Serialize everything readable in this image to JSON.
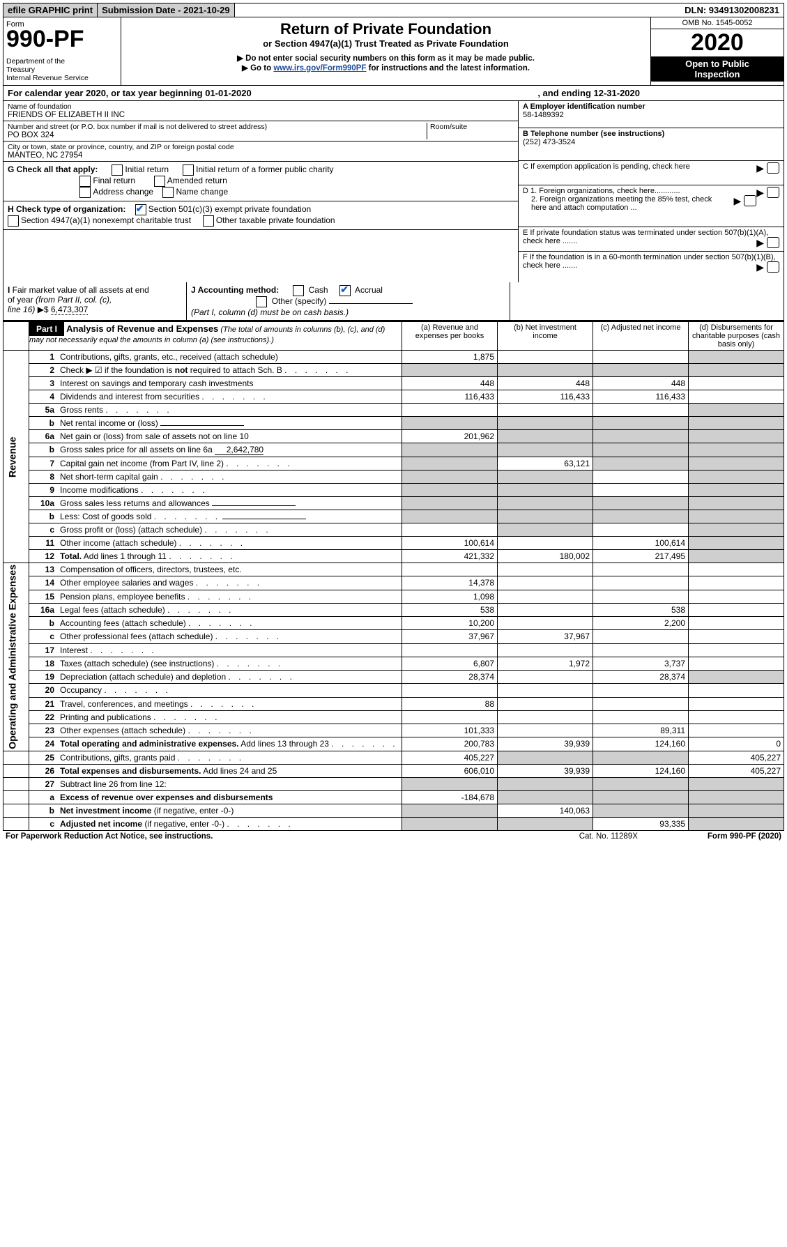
{
  "top": {
    "efile": "efile GRAPHIC print",
    "submission": "Submission Date - 2021-10-29",
    "dln": "DLN: 93491302008231"
  },
  "header": {
    "form": "Form",
    "number": "990-PF",
    "dept": "Department of the Treasury\nInternal Revenue Service",
    "title": "Return of Private Foundation",
    "subtitle": "or Section 4947(a)(1) Trust Treated as Private Foundation",
    "note1": "▶ Do not enter social security numbers on this form as it may be made public.",
    "note2_pre": "▶ Go to ",
    "note2_link": "www.irs.gov/Form990PF",
    "note2_post": " for instructions and the latest information.",
    "omb": "OMB No. 1545-0052",
    "year": "2020",
    "open": "Open to Public Inspection"
  },
  "cal": {
    "begin": "For calendar year 2020, or tax year beginning 01-01-2020",
    "end": ", and ending 12-31-2020"
  },
  "ident": {
    "name_label": "Name of foundation",
    "name": "FRIENDS OF ELIZABETH II INC",
    "addr_label": "Number and street (or P.O. box number if mail is not delivered to street address)",
    "addr": "PO BOX 324",
    "room_label": "Room/suite",
    "city_label": "City or town, state or province, country, and ZIP or foreign postal code",
    "city": "MANTEO, NC  27954",
    "ein_label": "A Employer identification number",
    "ein": "58-1489392",
    "tel_label": "B Telephone number (see instructions)",
    "tel": "(252) 473-3524",
    "c": "C If exemption application is pending, check here",
    "d1": "D 1. Foreign organizations, check here............",
    "d2": "2. Foreign organizations meeting the 85% test, check here and attach computation ...",
    "e": "E  If private foundation status was terminated under section 507(b)(1)(A), check here .......",
    "f": "F  If the foundation is in a 60-month termination under section 507(b)(1)(B), check here ......."
  },
  "g": {
    "label": "G Check all that apply:",
    "opts": [
      "Initial return",
      "Final return",
      "Address change",
      "Initial return of a former public charity",
      "Amended return",
      "Name change"
    ]
  },
  "h": {
    "label": "H Check type of organization:",
    "o1": "Section 501(c)(3) exempt private foundation",
    "o2": "Section 4947(a)(1) nonexempt charitable trust",
    "o3": "Other taxable private foundation"
  },
  "i": {
    "label": "I Fair market value of all assets at end of year (from Part II, col. (c), line 16)",
    "val": "6,473,307"
  },
  "j": {
    "label": "J Accounting method:",
    "cash": "Cash",
    "accrual": "Accrual",
    "other": "Other (specify)",
    "note": "(Part I, column (d) must be on cash basis.)"
  },
  "part1": {
    "label": "Part I",
    "title": "Analysis of Revenue and Expenses",
    "sub": "(The total of amounts in columns (b), (c), and (d) may not necessarily equal the amounts in column (a) (see instructions).)",
    "cols": {
      "a": "(a)    Revenue and expenses per books",
      "b": "(b)  Net investment income",
      "c": "(c)  Adjusted net income",
      "d": "(d)  Disbursements for charitable purposes (cash basis only)"
    }
  },
  "side": {
    "rev": "Revenue",
    "exp": "Operating and Administrative Expenses"
  },
  "rows": [
    {
      "n": "1",
      "d": "Contributions, gifts, grants, etc., received (attach schedule)",
      "a": "1,875",
      "d_s": true
    },
    {
      "n": "2",
      "d": "Check ▶ ☑ if the foundation is <b>not</b> required to attach Sch. B",
      "dots": true,
      "a_s": true,
      "b_s": true,
      "c_s": true,
      "d_s": true
    },
    {
      "n": "3",
      "d": "Interest on savings and temporary cash investments",
      "a": "448",
      "b": "448",
      "c": "448"
    },
    {
      "n": "4",
      "d": "Dividends and interest from securities",
      "dots": true,
      "a": "116,433",
      "b": "116,433",
      "c": "116,433"
    },
    {
      "n": "5a",
      "d": "Gross rents",
      "dots": true,
      "d_s": true
    },
    {
      "n": "b",
      "d": "Net rental income or (loss)",
      "uline": true,
      "a_s": true,
      "b_s": true,
      "c_s": true,
      "d_s": true
    },
    {
      "n": "6a",
      "d": "Net gain or (loss) from sale of assets not on line 10",
      "a": "201,962",
      "b_s": true,
      "c_s": true,
      "d_s": true
    },
    {
      "n": "b",
      "d": "Gross sales price for all assets on line 6a",
      "uline_val": "2,642,780",
      "a_s": true,
      "b_s": true,
      "c_s": true,
      "d_s": true
    },
    {
      "n": "7",
      "d": "Capital gain net income (from Part IV, line 2)",
      "dots": true,
      "a_s": true,
      "b": "63,121",
      "c_s": true,
      "d_s": true
    },
    {
      "n": "8",
      "d": "Net short-term capital gain",
      "dots": true,
      "a_s": true,
      "b_s": true,
      "d_s": true
    },
    {
      "n": "9",
      "d": "Income modifications",
      "dots": true,
      "a_s": true,
      "b_s": true,
      "d_s": true
    },
    {
      "n": "10a",
      "d": "Gross sales less returns and allowances",
      "uline": true,
      "a_s": true,
      "b_s": true,
      "c_s": true,
      "d_s": true
    },
    {
      "n": "b",
      "d": "Less: Cost of goods sold",
      "dots": true,
      "uline": true,
      "a_s": true,
      "b_s": true,
      "c_s": true,
      "d_s": true
    },
    {
      "n": "c",
      "d": "Gross profit or (loss) (attach schedule)",
      "dots": true,
      "b_s": true,
      "d_s": true
    },
    {
      "n": "11",
      "d": "Other income (attach schedule)",
      "dots": true,
      "a": "100,614",
      "c": "100,614",
      "d_s": true
    },
    {
      "n": "12",
      "d": "<b>Total.</b> Add lines 1 through 11",
      "dots": true,
      "a": "421,332",
      "b": "180,002",
      "c": "217,495",
      "d_s": true
    },
    {
      "n": "13",
      "d": "Compensation of officers, directors, trustees, etc."
    },
    {
      "n": "14",
      "d": "Other employee salaries and wages",
      "dots": true,
      "a": "14,378"
    },
    {
      "n": "15",
      "d": "Pension plans, employee benefits",
      "dots": true,
      "a": "1,098"
    },
    {
      "n": "16a",
      "d": "Legal fees (attach schedule)",
      "dots": true,
      "a": "538",
      "c": "538"
    },
    {
      "n": "b",
      "d": "Accounting fees (attach schedule)",
      "dots": true,
      "a": "10,200",
      "c": "2,200"
    },
    {
      "n": "c",
      "d": "Other professional fees (attach schedule)",
      "dots": true,
      "a": "37,967",
      "b": "37,967"
    },
    {
      "n": "17",
      "d": "Interest",
      "dots": true
    },
    {
      "n": "18",
      "d": "Taxes (attach schedule) (see instructions)",
      "dots": true,
      "a": "6,807",
      "b": "1,972",
      "c": "3,737"
    },
    {
      "n": "19",
      "d": "Depreciation (attach schedule) and depletion",
      "dots": true,
      "a": "28,374",
      "c": "28,374",
      "d_s": true
    },
    {
      "n": "20",
      "d": "Occupancy",
      "dots": true
    },
    {
      "n": "21",
      "d": "Travel, conferences, and meetings",
      "dots": true,
      "a": "88"
    },
    {
      "n": "22",
      "d": "Printing and publications",
      "dots": true
    },
    {
      "n": "23",
      "d": "Other expenses (attach schedule)",
      "dots": true,
      "a": "101,333",
      "c": "89,311"
    },
    {
      "n": "24",
      "d": "<b>Total operating and administrative expenses.</b> Add lines 13 through 23",
      "dots": true,
      "a": "200,783",
      "b": "39,939",
      "c": "124,160",
      "dv": "0"
    },
    {
      "n": "25",
      "d": "Contributions, gifts, grants paid",
      "dots": true,
      "a": "405,227",
      "b_s": true,
      "c_s": true,
      "dv": "405,227"
    },
    {
      "n": "26",
      "d": "<b>Total expenses and disbursements.</b> Add lines 24 and 25",
      "a": "606,010",
      "b": "39,939",
      "c": "124,160",
      "dv": "405,227"
    },
    {
      "n": "27",
      "d": "Subtract line 26 from line 12:",
      "a_s": true,
      "b_s": true,
      "c_s": true,
      "d_s": true
    },
    {
      "n": "a",
      "d": "<b>Excess of revenue over expenses and disbursements</b>",
      "a": "-184,678",
      "b_s": true,
      "c_s": true,
      "d_s": true
    },
    {
      "n": "b",
      "d": "<b>Net investment income</b> (if negative, enter -0-)",
      "a_s": true,
      "b": "140,063",
      "c_s": true,
      "d_s": true
    },
    {
      "n": "c",
      "d": "<b>Adjusted net income</b> (if negative, enter -0-)",
      "dots": true,
      "a_s": true,
      "b_s": true,
      "c": "93,335",
      "d_s": true
    }
  ],
  "footer": {
    "left": "For Paperwork Reduction Act Notice, see instructions.",
    "mid": "Cat. No. 11289X",
    "right": "Form 990-PF (2020)"
  }
}
